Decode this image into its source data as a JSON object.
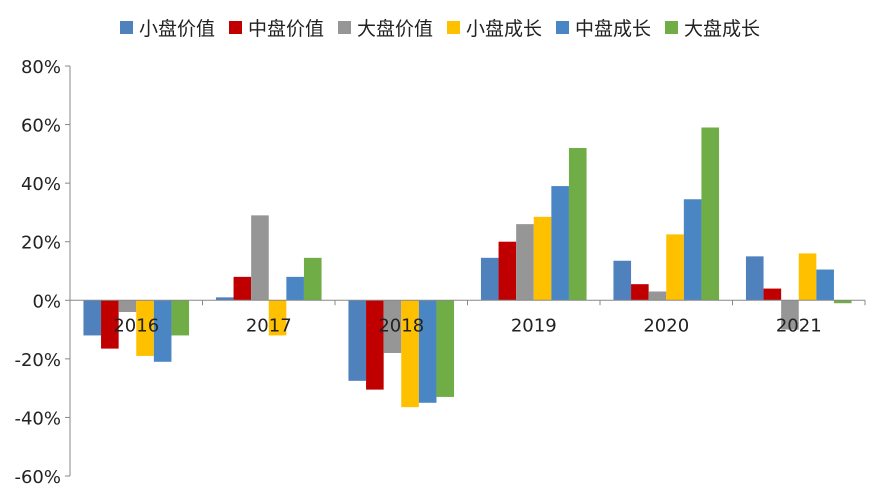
{
  "chart_data": {
    "type": "bar",
    "title": "",
    "xlabel": "",
    "ylabel": "",
    "categories": [
      "2016",
      "2017",
      "2018",
      "2019",
      "2020",
      "2021"
    ],
    "ylim": [
      -60,
      80
    ],
    "yticks": [
      -60,
      -40,
      -20,
      0,
      20,
      40,
      60,
      80
    ],
    "ytick_labels": [
      "-60%",
      "-40%",
      "-20%",
      "0%",
      "20%",
      "40%",
      "60%",
      "80%"
    ],
    "grid": false,
    "legend_position": "top",
    "series": [
      {
        "name": "小盘价值",
        "color": "#4F81BD",
        "values": [
          -12,
          1,
          -27.5,
          14.5,
          13.5,
          15
        ]
      },
      {
        "name": "中盘价值",
        "color": "#C00000",
        "values": [
          -16.5,
          8,
          -30.5,
          20,
          5.5,
          4
        ]
      },
      {
        "name": "大盘价值",
        "color": "#969696",
        "values": [
          -4,
          29,
          -18,
          26,
          3,
          -10
        ]
      },
      {
        "name": "小盘成长",
        "color": "#FFC000",
        "values": [
          -19,
          -12,
          -36.5,
          28.5,
          22.5,
          16
        ]
      },
      {
        "name": "中盘成长",
        "color": "#4A86C4",
        "values": [
          -21,
          8,
          -35,
          39,
          34.5,
          10.5
        ]
      },
      {
        "name": "大盘成长",
        "color": "#70AD47",
        "values": [
          -12,
          14.5,
          -33,
          52,
          59,
          -1
        ]
      }
    ]
  }
}
